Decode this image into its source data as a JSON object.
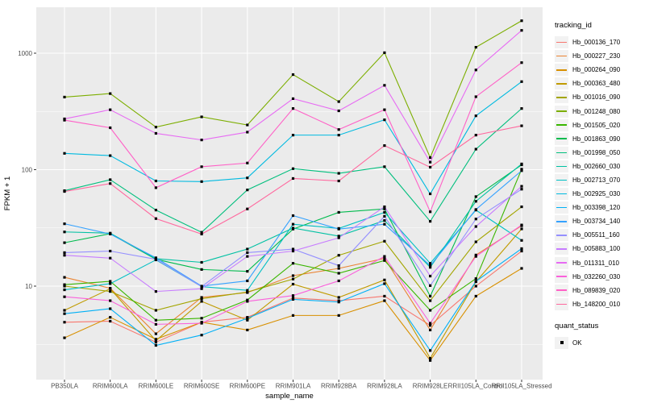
{
  "chart_data": {
    "type": "line",
    "title": "",
    "xlabel": "sample_name",
    "ylabel": "FPKM + 1",
    "y_scale": "log10",
    "ylim": [
      1.6,
      2500
    ],
    "grid": true,
    "legend_position": "right",
    "y_ticks": [
      10,
      100,
      1000
    ],
    "y_tick_labels": [
      "10",
      "100",
      "1000"
    ],
    "y_minor_ticks": [
      3.1623,
      31.623,
      316.23
    ],
    "categories": [
      "PB350LA",
      "RRIM600LA",
      "RRIM600LE",
      "RRIM600SE",
      "RRIM600PE",
      "RRIM901LA",
      "RRIM928BA",
      "RRIM928LA",
      "RRIM928LE",
      "RRII105LA_Control",
      "RRII105LA_Stressed"
    ],
    "series": [
      {
        "label": "Hb_000136_170",
        "color": "#F8766D",
        "values": [
          4.9,
          5.0,
          3.3,
          4.9,
          5.4,
          7.9,
          7.5,
          8.2,
          4.6,
          10.0,
          20.0
        ]
      },
      {
        "label": "Hb_000227_230",
        "color": "#EA8331",
        "values": [
          11.9,
          9.6,
          3.9,
          8.0,
          8.8,
          12.3,
          14.2,
          17.3,
          4.2,
          18.5,
          33.0
        ]
      },
      {
        "label": "Hb_000264_090",
        "color": "#D89000",
        "values": [
          3.6,
          5.4,
          3.5,
          4.9,
          4.2,
          5.6,
          5.6,
          7.5,
          2.3,
          8.2,
          14.2
        ]
      },
      {
        "label": "Hb_000363_480",
        "color": "#C09B00",
        "values": [
          6.2,
          9.5,
          3.4,
          7.4,
          5.1,
          10.4,
          8.0,
          11.3,
          2.4,
          10.9,
          31.0
        ]
      },
      {
        "label": "Hb_001016_090",
        "color": "#A3A500",
        "values": [
          10.0,
          9.0,
          6.2,
          7.8,
          8.9,
          11.5,
          18.4,
          24.3,
          7.5,
          24.0,
          48.0
        ]
      },
      {
        "label": "Hb_001248_080",
        "color": "#7CAE00",
        "values": [
          420,
          450,
          232,
          284,
          242,
          655,
          384,
          1010,
          127,
          1125,
          1900
        ]
      },
      {
        "label": "Hb_001505_020",
        "color": "#39B600",
        "values": [
          10.3,
          11.0,
          5.1,
          5.3,
          7.6,
          15.7,
          12.9,
          16.6,
          6.2,
          11.6,
          101
        ]
      },
      {
        "label": "Hb_001863_090",
        "color": "#00BB4E",
        "values": [
          23.6,
          28.2,
          17.0,
          13.9,
          13.4,
          30.9,
          43.0,
          46.0,
          8.2,
          58.7,
          110
        ]
      },
      {
        "label": "Hb_001998_050",
        "color": "#00BF7D",
        "values": [
          66,
          82,
          45,
          29,
          67,
          102,
          93,
          106,
          36,
          150,
          335
        ]
      },
      {
        "label": "Hb_002660_030",
        "color": "#00C1A3",
        "values": [
          29.2,
          28.5,
          17.2,
          16.0,
          20.8,
          31.5,
          26.9,
          36.6,
          14.5,
          53.5,
          112
        ]
      },
      {
        "label": "Hb_002713_070",
        "color": "#00BFC4",
        "values": [
          9.3,
          10.5,
          16.8,
          9.9,
          9.2,
          34.0,
          31.3,
          43.0,
          15.7,
          45.0,
          24.7
        ]
      },
      {
        "label": "Hb_002925_030",
        "color": "#00BAE0",
        "values": [
          138,
          132,
          80,
          79,
          85,
          198,
          198,
          268,
          62,
          290,
          570
        ]
      },
      {
        "label": "Hb_003398_120",
        "color": "#00B0F6",
        "values": [
          5.8,
          6.4,
          3.1,
          3.8,
          5.3,
          7.7,
          7.3,
          10.5,
          2.8,
          11.0,
          21.0
        ]
      },
      {
        "label": "Hb_003734_140",
        "color": "#35A2FF",
        "values": [
          34.3,
          28.0,
          17.5,
          10.0,
          11.1,
          40.3,
          30.9,
          34.0,
          15.0,
          45.5,
          98.0
        ]
      },
      {
        "label": "Hb_005511_160",
        "color": "#9590FF",
        "values": [
          19.4,
          20.0,
          17.0,
          9.9,
          19.4,
          20.8,
          15.0,
          39.8,
          10.1,
          37.7,
          68.0
        ]
      },
      {
        "label": "Hb_005883_100",
        "color": "#C77CFF",
        "values": [
          18.4,
          17.4,
          9.0,
          9.5,
          18.0,
          20.0,
          26.0,
          48.0,
          12.2,
          32.5,
          72.0
        ]
      },
      {
        "label": "Hb_011311_010",
        "color": "#E76BF3",
        "values": [
          273,
          327,
          205,
          180,
          210,
          407,
          320,
          530,
          116,
          718,
          1570
        ]
      },
      {
        "label": "Hb_032260_030",
        "color": "#FA62DB",
        "values": [
          8.1,
          7.5,
          4.7,
          4.8,
          7.4,
          8.3,
          11.1,
          18.0,
          4.8,
          18.0,
          33.5
        ]
      },
      {
        "label": "Hb_089839_020",
        "color": "#FF61C7",
        "values": [
          266,
          229,
          70,
          106,
          114,
          335,
          221,
          327,
          43.5,
          423,
          830
        ]
      },
      {
        "label": "Hb_148200_010",
        "color": "#FF689E",
        "values": [
          65,
          76,
          38,
          28,
          46,
          84,
          80,
          161,
          105,
          198,
          238
        ]
      }
    ],
    "style": {
      "panel_bg": "#EBEBEB",
      "grid_color": "#FFFFFF",
      "tick_color": "#333333",
      "tick_label_color": "#4d4d4d",
      "point_color": "#000000"
    }
  },
  "legend": {
    "tracking_title": "tracking_id",
    "quant_title": "quant_status",
    "quant_value": "OK"
  }
}
